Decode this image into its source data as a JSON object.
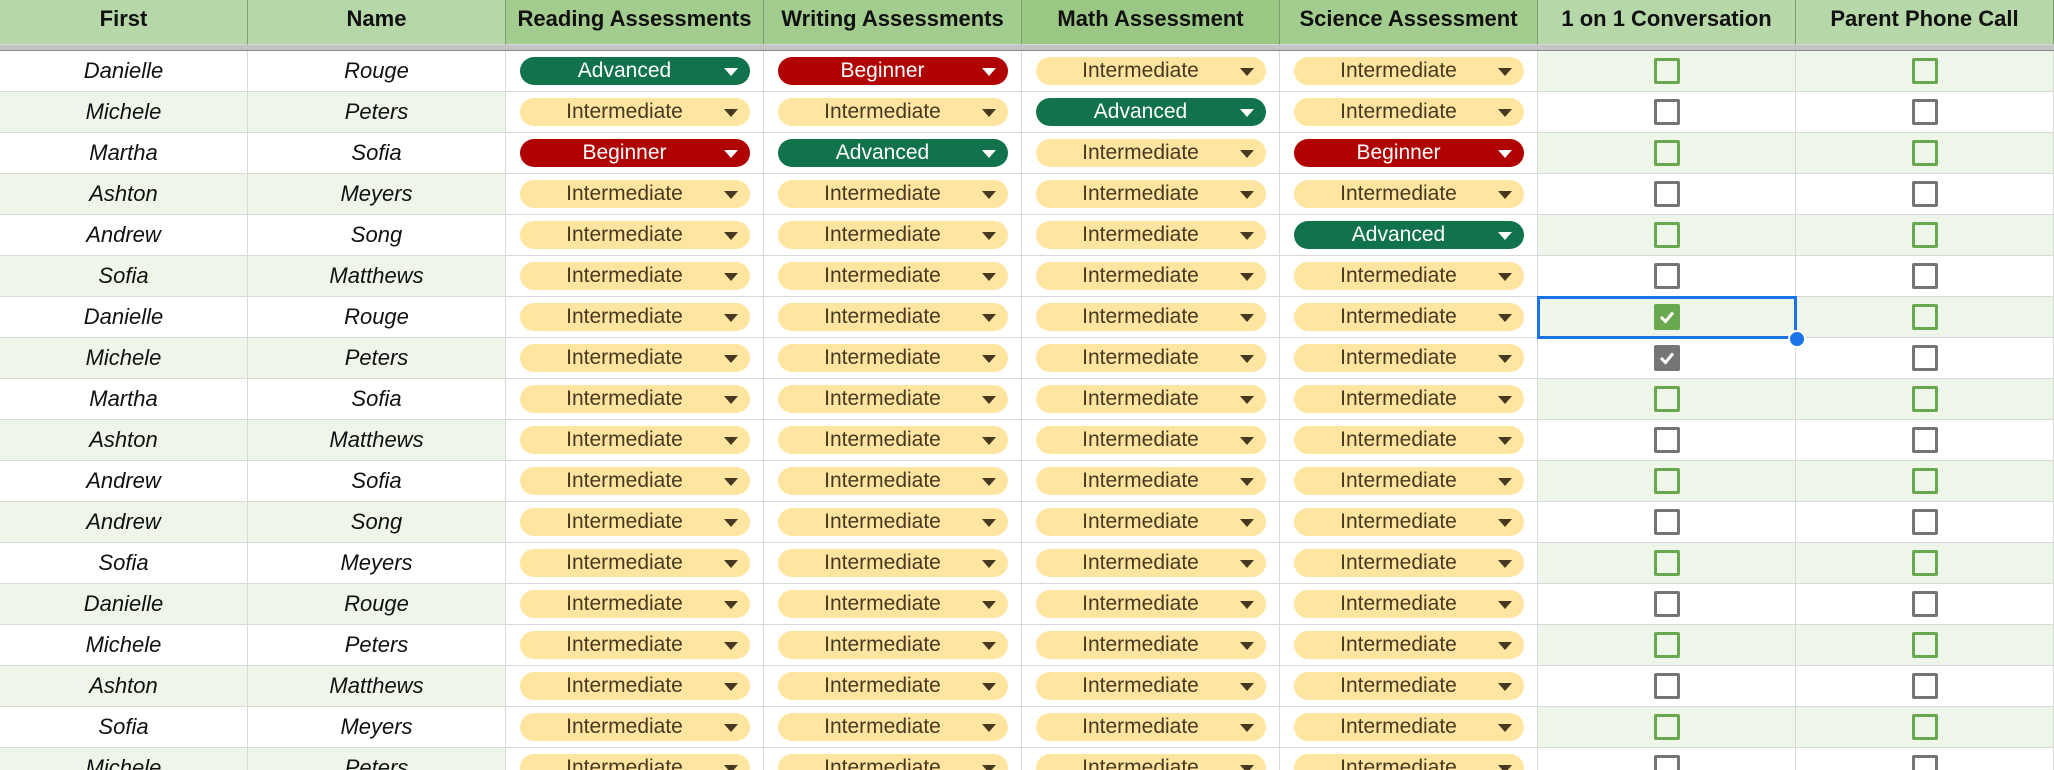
{
  "header": {
    "columns": [
      "First",
      "Name",
      "Reading Assessments",
      "Writing Assessments",
      "Math Assessment",
      "Science Assessment",
      "1 on 1 Conversation",
      "Parent Phone Call"
    ]
  },
  "rows": [
    [
      "Danielle",
      "Rouge",
      "Advanced",
      "Beginner",
      "Intermediate",
      "Intermediate",
      false,
      false
    ],
    [
      "Michele",
      "Peters",
      "Intermediate",
      "Intermediate",
      "Advanced",
      "Intermediate",
      false,
      false
    ],
    [
      "Martha",
      "Sofia",
      "Beginner",
      "Advanced",
      "Intermediate",
      "Beginner",
      false,
      false
    ],
    [
      "Ashton",
      "Meyers",
      "Intermediate",
      "Intermediate",
      "Intermediate",
      "Intermediate",
      false,
      false
    ],
    [
      "Andrew",
      "Song",
      "Intermediate",
      "Intermediate",
      "Intermediate",
      "Advanced",
      false,
      false
    ],
    [
      "Sofia",
      "Matthews",
      "Intermediate",
      "Intermediate",
      "Intermediate",
      "Intermediate",
      false,
      false
    ],
    [
      "Danielle",
      "Rouge",
      "Intermediate",
      "Intermediate",
      "Intermediate",
      "Intermediate",
      true,
      false
    ],
    [
      "Michele",
      "Peters",
      "Intermediate",
      "Intermediate",
      "Intermediate",
      "Intermediate",
      true,
      false
    ],
    [
      "Martha",
      "Sofia",
      "Intermediate",
      "Intermediate",
      "Intermediate",
      "Intermediate",
      false,
      false
    ],
    [
      "Ashton",
      "Matthews",
      "Intermediate",
      "Intermediate",
      "Intermediate",
      "Intermediate",
      false,
      false
    ],
    [
      "Andrew",
      "Sofia",
      "Intermediate",
      "Intermediate",
      "Intermediate",
      "Intermediate",
      false,
      false
    ],
    [
      "Andrew",
      "Song",
      "Intermediate",
      "Intermediate",
      "Intermediate",
      "Intermediate",
      false,
      false
    ],
    [
      "Sofia",
      "Meyers",
      "Intermediate",
      "Intermediate",
      "Intermediate",
      "Intermediate",
      false,
      false
    ],
    [
      "Danielle",
      "Rouge",
      "Intermediate",
      "Intermediate",
      "Intermediate",
      "Intermediate",
      false,
      false
    ],
    [
      "Michele",
      "Peters",
      "Intermediate",
      "Intermediate",
      "Intermediate",
      "Intermediate",
      false,
      false
    ],
    [
      "Ashton",
      "Matthews",
      "Intermediate",
      "Intermediate",
      "Intermediate",
      "Intermediate",
      false,
      false
    ],
    [
      "Sofia",
      "Meyers",
      "Intermediate",
      "Intermediate",
      "Intermediate",
      "Intermediate",
      false,
      false
    ],
    [
      "Michele",
      "Peters",
      "Intermediate",
      "Intermediate",
      "Intermediate",
      "Intermediate",
      false,
      false
    ]
  ]
}
